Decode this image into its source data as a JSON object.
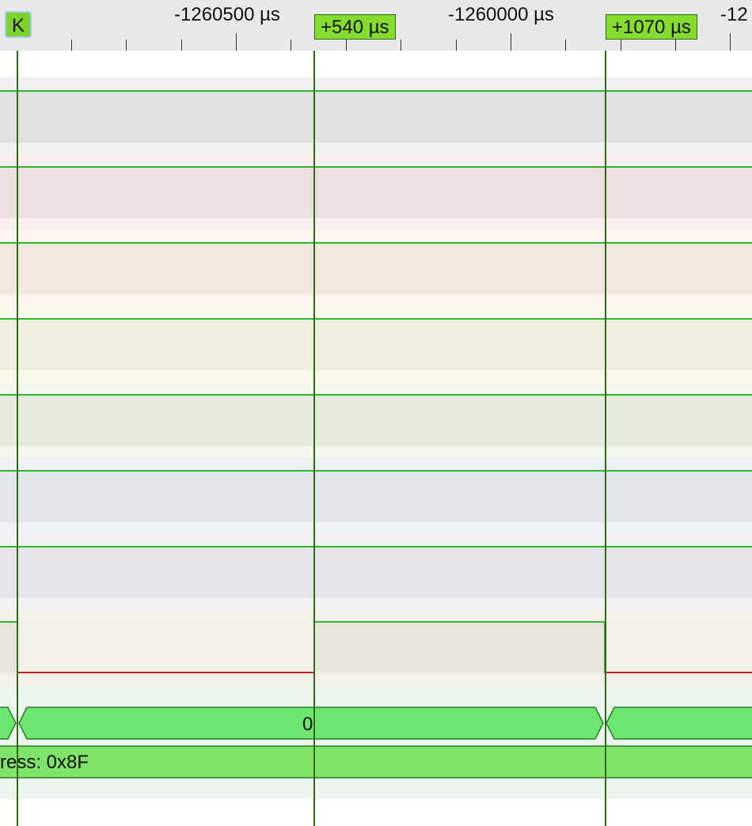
{
  "ruler": {
    "labels": [
      "-1260500 µs",
      "-1260000 µs",
      "-12"
    ],
    "markers": {
      "k": "K",
      "m1": "+540 µs",
      "m2": "+1070 µs"
    }
  },
  "decode": {
    "bytes": [
      "0"
    ],
    "address_label": "ress: 0x8F"
  },
  "colors": {
    "marker_fill": "#86dc2e",
    "cursor_line": "#2f6b12",
    "signal_high": "#2fb52f",
    "signal_low": "#c41e1e",
    "decode_fill": "#6ee56e",
    "address_fill": "#7fe36a"
  }
}
